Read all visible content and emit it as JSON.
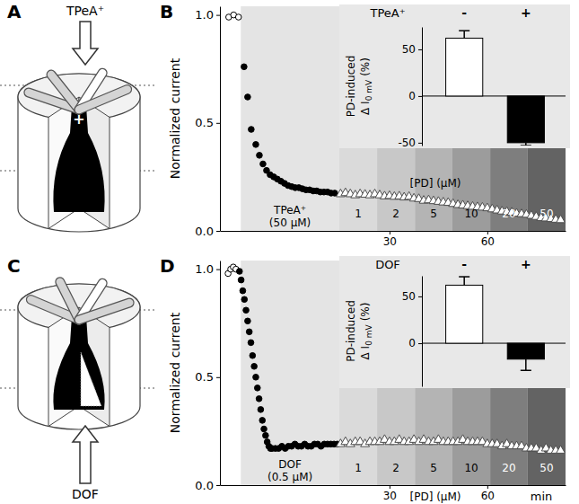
{
  "chart_data": [
    {
      "panel": "B",
      "type": "scatter",
      "y_label": "Normalized current",
      "xlim": [
        -22,
        84
      ],
      "ylim": [
        0,
        1.04
      ],
      "xticks": [
        30,
        60
      ],
      "yticks": [
        {
          "value": 0,
          "label": "0.0"
        },
        {
          "value": 0.5,
          "label": "0.5"
        },
        {
          "value": 1,
          "label": "1.0"
        }
      ],
      "treatment": {
        "label": "TPeA⁺",
        "concentration_label": "(50 µM)",
        "start": -15.6,
        "end": 14.6,
        "color": "#e4e4e4"
      },
      "pd_bands": {
        "label": "[PD] (µM)",
        "concentrations": [
          1,
          2,
          5,
          10,
          20,
          50
        ],
        "starts": [
          14.6,
          26.2,
          37.8,
          49.3,
          60.9,
          72.4
        ],
        "ends": [
          26.2,
          37.8,
          49.3,
          60.9,
          72.4,
          84
        ],
        "colors": [
          "#dadada",
          "#c8c8c8",
          "#b4b4b4",
          "#9c9c9c",
          "#7e7e7e",
          "#636363"
        ]
      },
      "series": [
        {
          "marker": "circle-open",
          "color": "#000000",
          "x": [
            -19.3,
            -17.8,
            -16.3
          ],
          "values": [
            0.99,
            1.0,
            0.99
          ]
        },
        {
          "marker": "circle",
          "color": "#000000",
          "x": [
            -14.6,
            -13.5,
            -12.4,
            -11,
            -9.9,
            -8.8,
            -7.7,
            -6.6,
            -5.5,
            -4.4,
            -3.3,
            -2.2,
            -1.1,
            0,
            1.1,
            2.2,
            3.3,
            4.4,
            5.5,
            6.6,
            7.7,
            8.8,
            9.9,
            11,
            12.1,
            13.2
          ],
          "values": [
            0.76,
            0.62,
            0.47,
            0.4,
            0.35,
            0.31,
            0.28,
            0.26,
            0.25,
            0.24,
            0.23,
            0.22,
            0.21,
            0.205,
            0.2,
            0.2,
            0.195,
            0.19,
            0.19,
            0.185,
            0.185,
            0.18,
            0.18,
            0.18,
            0.175,
            0.175
          ]
        },
        {
          "marker": "triangle-open",
          "color": "#4d4d4d",
          "x": [
            15,
            16.5,
            18,
            19.5,
            21,
            22.5,
            24,
            25.5,
            27,
            28.5,
            30,
            31.5,
            33,
            34.5,
            36,
            37.5,
            39,
            40.5,
            42,
            43.5,
            45,
            46.5,
            48,
            49.5,
            51,
            52.5,
            54,
            55.5,
            57,
            58.5,
            60,
            61.5,
            63,
            64.5,
            66,
            67.5,
            69,
            70.5,
            72,
            73.5,
            75,
            76.5,
            78,
            79.5,
            81,
            82.5
          ],
          "values": [
            0.17,
            0.175,
            0.17,
            0.165,
            0.17,
            0.168,
            0.165,
            0.17,
            0.165,
            0.16,
            0.162,
            0.158,
            0.16,
            0.155,
            0.158,
            0.15,
            0.148,
            0.14,
            0.142,
            0.138,
            0.135,
            0.132,
            0.13,
            0.125,
            0.12,
            0.118,
            0.115,
            0.112,
            0.11,
            0.108,
            0.105,
            0.1,
            0.095,
            0.09,
            0.088,
            0.085,
            0.08,
            0.078,
            0.075,
            0.07,
            0.065,
            0.06,
            0.058,
            0.055,
            0.052,
            0.05
          ]
        }
      ]
    },
    {
      "type": "bar",
      "header": "TPeA⁺",
      "categories": [
        "-",
        "+"
      ],
      "values": [
        62,
        -50
      ],
      "errors": [
        8,
        3
      ],
      "colors": [
        "#ffffff",
        "#000000"
      ],
      "ylim": [
        -53,
        74
      ],
      "yticks": [
        -50,
        0,
        50
      ],
      "y_label": [
        "PD-induced",
        "Δ I",
        "0 mV",
        "(%)"
      ]
    },
    {
      "panel": "D",
      "type": "scatter",
      "y_label": "Normalized current",
      "x_label": "min",
      "xlim": [
        -22,
        84
      ],
      "ylim": [
        0,
        1.04
      ],
      "xticks": [
        30,
        60
      ],
      "yticks": [
        {
          "value": 0,
          "label": "0.0"
        },
        {
          "value": 0.5,
          "label": "0.5"
        },
        {
          "value": 1,
          "label": "1.0"
        }
      ],
      "treatment": {
        "label": "DOF",
        "concentration_label": "(0.5 µM)",
        "start": -15.6,
        "end": 14.6,
        "color": "#e4e4e4"
      },
      "pd_bands": {
        "label": "[PD] (µM)",
        "concentrations": [
          1,
          2,
          5,
          10,
          20,
          50
        ],
        "starts": [
          14.6,
          26.2,
          37.8,
          49.3,
          60.9,
          72.4
        ],
        "ends": [
          26.2,
          37.8,
          49.3,
          60.9,
          72.4,
          84
        ],
        "colors": [
          "#dadada",
          "#c8c8c8",
          "#b4b4b4",
          "#9c9c9c",
          "#7e7e7e",
          "#636363"
        ]
      },
      "series": [
        {
          "marker": "circle-open",
          "color": "#000000",
          "x": [
            -19.5,
            -18.7,
            -17.9,
            -17.1
          ],
          "values": [
            0.98,
            1.0,
            1.01,
            1.0
          ]
        },
        {
          "marker": "circle",
          "color": "#000000",
          "x": [
            -16,
            -15.5,
            -15,
            -14.5,
            -14,
            -13.5,
            -13,
            -12.5,
            -12,
            -11.5,
            -11,
            -10.5,
            -10,
            -9.5,
            -9,
            -8.5,
            -8,
            -7.5,
            -7,
            -6.5,
            -6,
            -5,
            -4,
            -3,
            -2,
            -1,
            0,
            1,
            2,
            3,
            4,
            5,
            6,
            7,
            8,
            9,
            10,
            11,
            12,
            13,
            14
          ],
          "values": [
            0.99,
            0.95,
            0.9,
            0.86,
            0.81,
            0.76,
            0.71,
            0.66,
            0.6,
            0.55,
            0.5,
            0.45,
            0.4,
            0.35,
            0.3,
            0.26,
            0.23,
            0.2,
            0.18,
            0.17,
            0.17,
            0.17,
            0.17,
            0.18,
            0.17,
            0.18,
            0.18,
            0.19,
            0.18,
            0.18,
            0.19,
            0.18,
            0.18,
            0.19,
            0.19,
            0.18,
            0.19,
            0.19,
            0.19,
            0.19,
            0.19
          ]
        },
        {
          "marker": "triangle-open",
          "color": "#4d4d4d",
          "x": [
            15,
            16.5,
            18,
            19.5,
            21,
            22.5,
            24,
            25.5,
            27,
            28.5,
            30,
            31.5,
            33,
            34.5,
            36,
            37.5,
            39,
            40.5,
            42,
            43.5,
            45,
            46.5,
            48,
            49.5,
            51,
            52.5,
            54,
            55.5,
            57,
            58.5,
            60,
            61.5,
            63,
            64.5,
            66,
            67.5,
            69,
            70.5,
            72,
            73.5,
            75,
            76.5,
            78,
            79.5,
            81,
            82.5
          ],
          "values": [
            0.19,
            0.2,
            0.19,
            0.2,
            0.2,
            0.19,
            0.2,
            0.2,
            0.2,
            0.21,
            0.2,
            0.2,
            0.21,
            0.2,
            0.2,
            0.21,
            0.2,
            0.21,
            0.2,
            0.2,
            0.21,
            0.2,
            0.2,
            0.2,
            0.2,
            0.21,
            0.2,
            0.2,
            0.2,
            0.2,
            0.19,
            0.19,
            0.19,
            0.18,
            0.19,
            0.18,
            0.18,
            0.18,
            0.17,
            0.17,
            0.17,
            0.16,
            0.17,
            0.16,
            0.16,
            0.16
          ]
        }
      ]
    },
    {
      "type": "bar",
      "header": "DOF",
      "categories": [
        "-",
        "+"
      ],
      "values": [
        62,
        -17
      ],
      "errors": [
        9,
        12
      ],
      "colors": [
        "#ffffff",
        "#000000"
      ],
      "ylim": [
        -46,
        72
      ],
      "yticks": [
        0,
        50
      ],
      "y_label": [
        "PD-induced",
        "Δ I",
        "0 mV",
        "(%)"
      ]
    }
  ],
  "diagrams": [
    {
      "panel": "A",
      "label": "TPeA⁺",
      "charge": "+"
    },
    {
      "panel": "C",
      "label": "DOF"
    }
  ]
}
